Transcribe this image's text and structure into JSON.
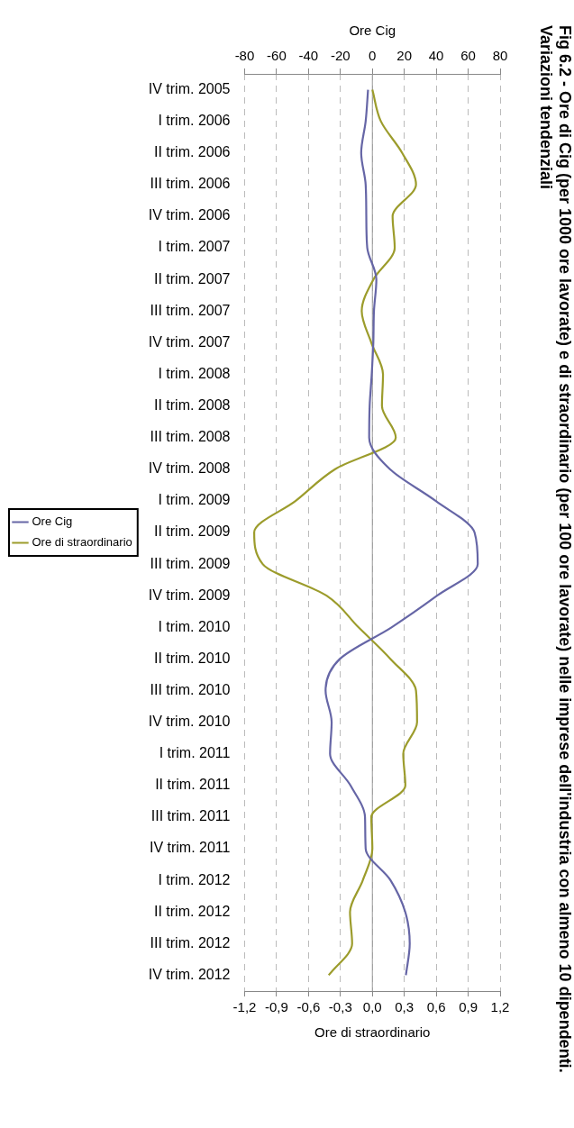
{
  "chart_data": {
    "type": "line",
    "orientation": "horizontal",
    "title": "Fig 6.2 - Ore di Cig (per 1000 ore lavorate) e di straordinario (per 100 ore lavorate) nelle imprese dell'industria con almeno 10 dipendenti. Variazioni tendenziali",
    "xlabel": "Ore di straordinario",
    "x2label": "Ore Cig",
    "categories": [
      "IV trim. 2005",
      "I trim. 2006",
      "II trim. 2006",
      "III trim. 2006",
      "IV trim. 2006",
      "I trim. 2007",
      "II trim. 2007",
      "III trim. 2007",
      "IV trim. 2007",
      "I trim. 2008",
      "II trim. 2008",
      "III trim. 2008",
      "IV trim. 2008",
      "I trim. 2009",
      "II trim. 2009",
      "III trim. 2009",
      "IV trim. 2009",
      "I trim. 2010",
      "II trim. 2010",
      "III trim. 2010",
      "IV trim. 2010",
      "I trim. 2011",
      "II trim. 2011",
      "III trim. 2011",
      "IV trim. 2011",
      "I trim. 2012",
      "II trim. 2012",
      "III trim. 2012",
      "IV trim. 2012"
    ],
    "series": [
      {
        "name": "Ore Cig",
        "color": "#6666a6",
        "axis": "x2",
        "values": [
          -2.7,
          -4.2,
          -7,
          -4.2,
          -3.8,
          -3.2,
          2.5,
          1,
          0.6,
          -0.4,
          -1.7,
          -2,
          11,
          39.6,
          64,
          66,
          40.5,
          12,
          -20.4,
          -29.3,
          -25.5,
          -26.5,
          -13.7,
          -4.6,
          -4.2,
          11.4,
          20.6,
          23.4,
          21
        ]
      },
      {
        "name": "Ore di straordinario",
        "color": "#9c9c2c",
        "values": [
          0,
          0.08,
          0.28,
          0.41,
          0.19,
          0.21,
          0.01,
          -0.1,
          -0.01,
          0.1,
          0.09,
          0.22,
          -0.35,
          -0.72,
          -1.11,
          -1.03,
          -0.43,
          -0.13,
          0.17,
          0.41,
          0.42,
          0.29,
          0.31,
          -0.01,
          0,
          -0.09,
          -0.21,
          -0.19,
          -0.41
        ]
      }
    ],
    "x2lim": [
      -80,
      80
    ],
    "x2ticks": [
      -80,
      -60,
      -40,
      -20,
      0,
      20,
      40,
      60,
      80
    ],
    "xlim": [
      -1.2,
      1.2
    ],
    "xticks": [
      {
        "value": -1.2,
        "label": "-1,2"
      },
      {
        "value": -0.9,
        "label": "-0,9"
      },
      {
        "value": -0.6,
        "label": "-0,6"
      },
      {
        "value": -0.3,
        "label": "-0,3"
      },
      {
        "value": 0,
        "label": "0,0"
      },
      {
        "value": 0.3,
        "label": "0,3"
      },
      {
        "value": 0.6,
        "label": "0,6"
      },
      {
        "value": 0.9,
        "label": "0,9"
      },
      {
        "value": 1.2,
        "label": "1,2"
      }
    ],
    "grid": "x",
    "legend": "left",
    "marker": "none",
    "line_style": "solid"
  }
}
